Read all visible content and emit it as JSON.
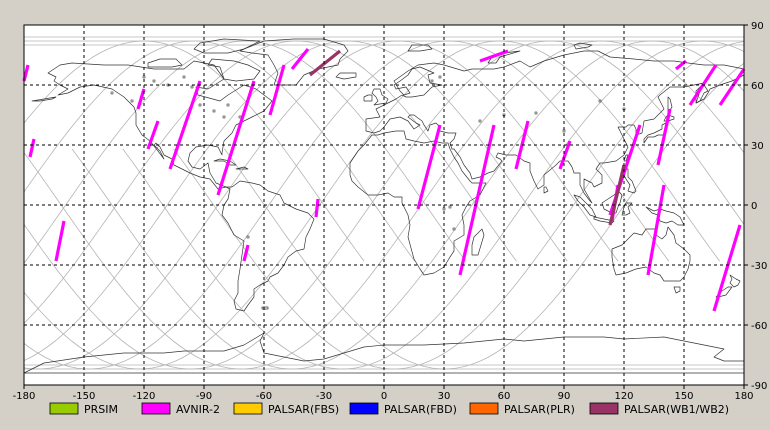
{
  "chart_data": {
    "type": "map",
    "projection": "equirectangular",
    "x_axis": {
      "range": [
        -180,
        180
      ],
      "ticks": [
        -180,
        -150,
        -120,
        -90,
        -60,
        -30,
        0,
        30,
        60,
        90,
        120,
        150,
        180
      ],
      "tick_labels": [
        "-180",
        "-150",
        "-120",
        "-90",
        "-60",
        "-30",
        "0",
        "30",
        "60",
        "90",
        "120",
        "150",
        "180"
      ]
    },
    "y_axis": {
      "range": [
        -90,
        90
      ],
      "ticks": [
        90,
        60,
        30,
        0,
        -30,
        -60,
        -90
      ],
      "tick_labels": [
        "90",
        "60",
        "30",
        "0",
        "-30",
        "-60",
        "-90"
      ]
    },
    "grid": true,
    "grid_style": "dashed",
    "orbit_tracks": {
      "count": 14,
      "start_lon": -210,
      "spacing_deg": 25.4,
      "max_lat": 82
    },
    "acquisition_segments": [
      {
        "sensor": "AVNIR-2",
        "lat": [
          62,
          70
        ],
        "lon": [
          -180,
          -178
        ]
      },
      {
        "sensor": "AVNIR-2",
        "lat": [
          24,
          33
        ],
        "lon": [
          -177,
          -175
        ]
      },
      {
        "sensor": "AVNIR-2",
        "lat": [
          -28,
          -8
        ],
        "lon": [
          -164,
          -160
        ]
      },
      {
        "sensor": "AVNIR-2",
        "lat": [
          48,
          58
        ],
        "lon": [
          -123,
          -120
        ]
      },
      {
        "sensor": "AVNIR-2",
        "lat": [
          28,
          42
        ],
        "lon": [
          -118,
          -113
        ]
      },
      {
        "sensor": "AVNIR-2",
        "lat": [
          18,
          62
        ],
        "lon": [
          -107,
          -92
        ]
      },
      {
        "sensor": "AVNIR-2",
        "lat": [
          5,
          62
        ],
        "lon": [
          -83,
          -65
        ]
      },
      {
        "sensor": "AVNIR-2",
        "lat": [
          -28,
          -20
        ],
        "lon": [
          -70,
          -68
        ]
      },
      {
        "sensor": "AVNIR-2",
        "lat": [
          45,
          70
        ],
        "lon": [
          -57,
          -50
        ]
      },
      {
        "sensor": "AVNIR-2",
        "lat": [
          -6,
          3
        ],
        "lon": [
          -34,
          -33
        ]
      },
      {
        "sensor": "AVNIR-2",
        "lat": [
          68,
          78
        ],
        "lon": [
          -46,
          -38
        ]
      },
      {
        "sensor": "AVNIR-2",
        "lat": [
          -2,
          40
        ],
        "lon": [
          17,
          28
        ]
      },
      {
        "sensor": "AVNIR-2",
        "lat": [
          -35,
          40
        ],
        "lon": [
          38,
          55
        ]
      },
      {
        "sensor": "AVNIR-2",
        "lat": [
          18,
          42
        ],
        "lon": [
          66,
          72
        ]
      },
      {
        "sensor": "AVNIR-2",
        "lat": [
          72,
          77
        ],
        "lon": [
          48,
          62
        ]
      },
      {
        "sensor": "AVNIR-2",
        "lat": [
          18,
          32
        ],
        "lon": [
          88,
          93
        ]
      },
      {
        "sensor": "AVNIR-2",
        "lat": [
          -8,
          10
        ],
        "lon": [
          114,
          117
        ]
      },
      {
        "sensor": "AVNIR-2",
        "lat": [
          -5,
          40
        ],
        "lon": [
          113,
          128
        ]
      },
      {
        "sensor": "AVNIR-2",
        "lat": [
          -35,
          10
        ],
        "lon": [
          132,
          140
        ]
      },
      {
        "sensor": "AVNIR-2",
        "lat": [
          20,
          48
        ],
        "lon": [
          137,
          143
        ]
      },
      {
        "sensor": "AVNIR-2",
        "lat": [
          68,
          72
        ],
        "lon": [
          146,
          151
        ]
      },
      {
        "sensor": "AVNIR-2",
        "lat": [
          50,
          70
        ],
        "lon": [
          153,
          166
        ]
      },
      {
        "sensor": "AVNIR-2",
        "lat": [
          50,
          68
        ],
        "lon": [
          168,
          180
        ]
      },
      {
        "sensor": "AVNIR-2",
        "lat": [
          -53,
          -10
        ],
        "lon": [
          165,
          178
        ]
      },
      {
        "sensor": "PALSAR(WB1/WB2)",
        "lat": [
          65,
          77
        ],
        "lon": [
          -37,
          -22
        ]
      },
      {
        "sensor": "PALSAR(WB1/WB2)",
        "lat": [
          -10,
          20
        ],
        "lon": [
          113,
          120
        ]
      }
    ],
    "legend": [
      {
        "label": "PRSIM",
        "color": "#99cc00"
      },
      {
        "label": "AVNIR-2",
        "color": "#ff00ff"
      },
      {
        "label": "PALSAR(FBS)",
        "color": "#ffcc00"
      },
      {
        "label": "PALSAR(FBD)",
        "color": "#0000ff"
      },
      {
        "label": "PALSAR(PLR)",
        "color": "#ff6600"
      },
      {
        "label": "PALSAR(WB1/WB2)",
        "color": "#993366"
      }
    ],
    "legend_position": "bottom"
  },
  "colors": {
    "background": "#d4d0c8",
    "map_background": "#ffffff",
    "coastline": "#333333",
    "orbit_track": "#b4b4b4",
    "grid": "#000000",
    "avnir": "#ff00ff",
    "palsar_wb": "#993366"
  }
}
